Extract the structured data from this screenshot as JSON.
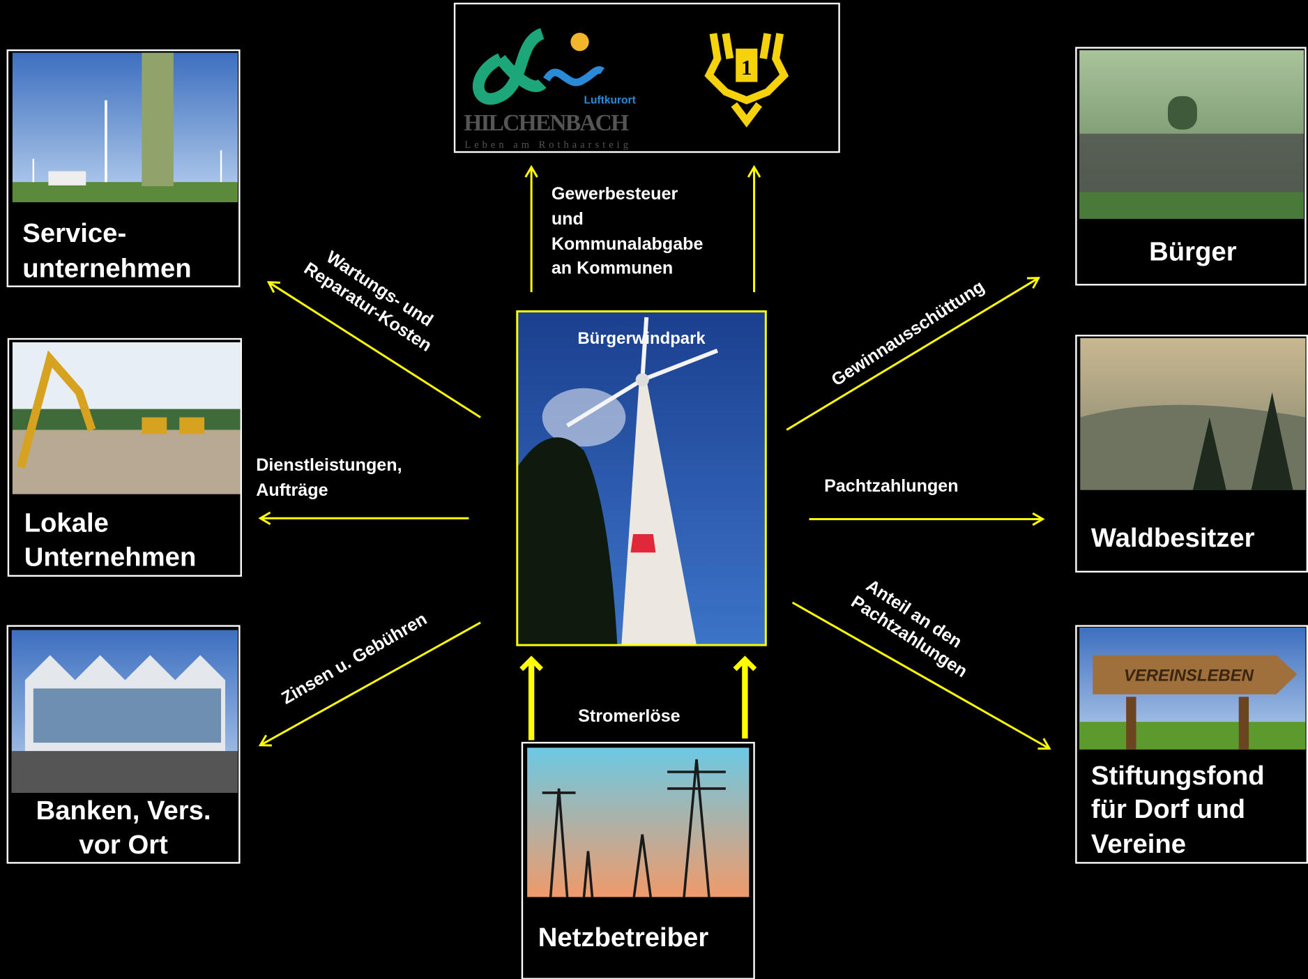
{
  "center": {
    "title": "Bürgerwindpark"
  },
  "logo": {
    "brand": "Luftkurort",
    "town": "HILCHENBACH",
    "slogan": "Leben am Rothaarsteig",
    "crest_text": "1"
  },
  "nodes": [
    {
      "label_lines": [
        "Service-",
        "unternehmen"
      ]
    },
    {
      "label_lines": [
        "Lokale",
        "Unternehmen"
      ]
    },
    {
      "label_lines": [
        "Banken,  Vers.",
        "vor Ort"
      ]
    },
    {
      "label_lines": [
        "Bürger"
      ]
    },
    {
      "label_lines": [
        "Waldbesitzer"
      ]
    },
    {
      "label_lines": [
        "Stiftungsfond",
        "für Dorf und",
        "Vereine"
      ],
      "sign_text": "VEREINSLEBEN"
    },
    {
      "label_lines": [
        "Netzbetreiber"
      ]
    }
  ],
  "edges": [
    {
      "label_lines": [
        "Gewerbesteuer",
        "und",
        "Kommunalabgabe",
        "an Kommunen"
      ]
    },
    {
      "label_lines": [
        "Wartungs- und",
        "Reparatur-Kosten"
      ]
    },
    {
      "label_lines": [
        "Dienstleistungen,",
        "Aufträge"
      ]
    },
    {
      "label_lines": [
        "Zinsen u. Gebühren"
      ]
    },
    {
      "label_lines": [
        "Gewinnausschüttung"
      ]
    },
    {
      "label_lines": [
        "Pachtzahlungen"
      ]
    },
    {
      "label_lines": [
        "Anteil an den",
        "Pachtzahlungen"
      ]
    },
    {
      "label_lines": [
        "Stromerlöse"
      ]
    }
  ]
}
